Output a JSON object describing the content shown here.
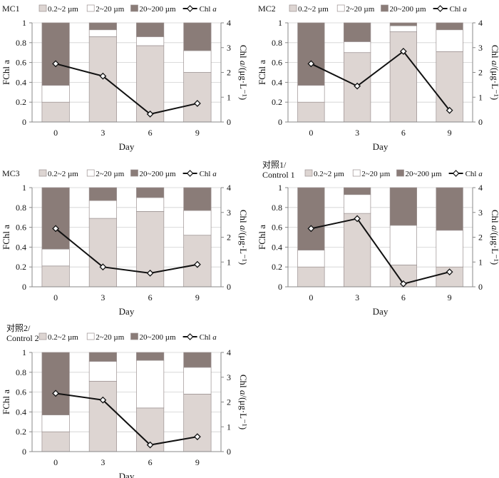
{
  "chart_data": [
    {
      "type": "bar",
      "panel_label": "MC1",
      "panel_label_2": "",
      "categories": [
        "0",
        "3",
        "6",
        "9"
      ],
      "series": [
        {
          "name": "0.2~2 µm",
          "values": [
            0.2,
            0.86,
            0.77,
            0.5
          ]
        },
        {
          "name": "2~20 µm",
          "values": [
            0.17,
            0.07,
            0.09,
            0.22
          ]
        },
        {
          "name": "20~200 µm",
          "values": [
            0.63,
            0.07,
            0.14,
            0.28
          ]
        }
      ],
      "line": {
        "name": "Chl a",
        "values": [
          2.35,
          1.85,
          0.32,
          0.75
        ]
      },
      "xlabel": "Day",
      "ylabel_left": "FChl a",
      "ylabel_right": "Chl a/(μg·L⁻¹)",
      "ylim": [
        0,
        1
      ],
      "ylim_right": [
        0,
        4
      ],
      "yticks": [
        "0",
        "0.2",
        "0.4",
        "0.6",
        "0.8",
        "1"
      ],
      "yticks_right": [
        "0",
        "1",
        "2",
        "3",
        "4"
      ]
    },
    {
      "type": "bar",
      "panel_label": "MC2",
      "panel_label_2": "",
      "categories": [
        "0",
        "3",
        "6",
        "9"
      ],
      "series": [
        {
          "name": "0.2~2 µm",
          "values": [
            0.2,
            0.7,
            0.91,
            0.71
          ]
        },
        {
          "name": "2~20 µm",
          "values": [
            0.17,
            0.11,
            0.06,
            0.22
          ]
        },
        {
          "name": "20~200 µm",
          "values": [
            0.63,
            0.19,
            0.03,
            0.07
          ]
        }
      ],
      "line": {
        "name": "Chl a",
        "values": [
          2.35,
          1.45,
          2.85,
          0.47
        ]
      },
      "xlabel": "Day",
      "ylabel_left": "FChl a",
      "ylabel_right": "Chl a/(μg·L⁻¹)",
      "ylim": [
        0,
        1
      ],
      "ylim_right": [
        0,
        4
      ],
      "yticks": [
        "0",
        "0.2",
        "0.4",
        "0.6",
        "0.8",
        "1"
      ],
      "yticks_right": [
        "0",
        "1",
        "2",
        "3",
        "4"
      ]
    },
    {
      "type": "bar",
      "panel_label": "MC3",
      "panel_label_2": "",
      "categories": [
        "0",
        "3",
        "6",
        "9"
      ],
      "series": [
        {
          "name": "0.2~2 µm",
          "values": [
            0.21,
            0.69,
            0.76,
            0.52
          ]
        },
        {
          "name": "2~20 µm",
          "values": [
            0.17,
            0.18,
            0.14,
            0.25
          ]
        },
        {
          "name": "20~200 µm",
          "values": [
            0.62,
            0.13,
            0.1,
            0.23
          ]
        }
      ],
      "line": {
        "name": "Chl a",
        "values": [
          2.35,
          0.8,
          0.55,
          0.9
        ]
      },
      "xlabel": "Day",
      "ylabel_left": "FChl a",
      "ylabel_right": "Chl a/(μg·L⁻¹)",
      "ylim": [
        0,
        1
      ],
      "ylim_right": [
        0,
        4
      ],
      "yticks": [
        "0",
        "0.2",
        "0.4",
        "0.6",
        "0.8",
        "1"
      ],
      "yticks_right": [
        "0",
        "1",
        "2",
        "3",
        "4"
      ]
    },
    {
      "type": "bar",
      "panel_label": "对照1/",
      "panel_label_2": "Control 1",
      "categories": [
        "0",
        "3",
        "6",
        "9"
      ],
      "series": [
        {
          "name": "0.2~2 µm",
          "values": [
            0.2,
            0.74,
            0.22,
            0.2
          ]
        },
        {
          "name": "2~20 µm",
          "values": [
            0.17,
            0.19,
            0.4,
            0.37
          ]
        },
        {
          "name": "20~200 µm",
          "values": [
            0.63,
            0.07,
            0.38,
            0.43
          ]
        }
      ],
      "line": {
        "name": "Chl a",
        "values": [
          2.35,
          2.75,
          0.12,
          0.6
        ]
      },
      "xlabel": "Day",
      "ylabel_left": "FChl a",
      "ylabel_right": "Chl a/(μg·L⁻¹)",
      "ylim": [
        0,
        1
      ],
      "ylim_right": [
        0,
        4
      ],
      "yticks": [
        "0",
        "0.2",
        "0.4",
        "0.6",
        "0.8",
        "1"
      ],
      "yticks_right": [
        "0",
        "1",
        "2",
        "3",
        "4"
      ]
    },
    {
      "type": "bar",
      "panel_label": "对照2/",
      "panel_label_2": "Control 2",
      "categories": [
        "0",
        "3",
        "6",
        "9"
      ],
      "series": [
        {
          "name": "0.2~2 µm",
          "values": [
            0.2,
            0.71,
            0.44,
            0.58
          ]
        },
        {
          "name": "2~20 µm",
          "values": [
            0.17,
            0.2,
            0.48,
            0.27
          ]
        },
        {
          "name": "20~200 µm",
          "values": [
            0.63,
            0.09,
            0.08,
            0.15
          ]
        }
      ],
      "line": {
        "name": "Chl a",
        "values": [
          2.35,
          2.08,
          0.27,
          0.6
        ]
      },
      "xlabel": "Day",
      "ylabel_left": "FChl a",
      "ylabel_right": "Chl a/(μg·L⁻¹)",
      "ylim": [
        0,
        1
      ],
      "ylim_right": [
        0,
        4
      ],
      "yticks": [
        "0",
        "0.2",
        "0.4",
        "0.6",
        "0.8",
        "1"
      ],
      "yticks_right": [
        "0",
        "1",
        "2",
        "3",
        "4"
      ]
    }
  ],
  "colors": {
    "small": "#ddd5d2",
    "medium": "#ffffff",
    "large": "#8a7c78",
    "bar_edge": "#9a9090",
    "line": "#111111",
    "grid": "#d0d0d0",
    "axis": "#888888"
  }
}
